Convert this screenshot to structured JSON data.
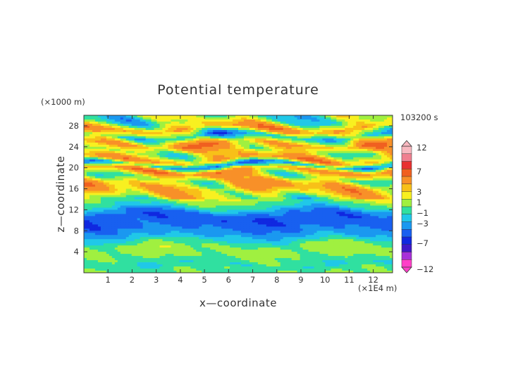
{
  "chart_data": {
    "type": "heatmap",
    "title": "Potential temperature",
    "xlabel": "x—coordinate",
    "ylabel": "z—coordinate",
    "x_unit": "(×1E4 m)",
    "y_unit": "(×1000 m)",
    "time_label": "103200 s",
    "xlim": [
      0,
      12.8
    ],
    "ylim": [
      0,
      30
    ],
    "x_ticks": [
      1,
      2,
      3,
      4,
      5,
      6,
      7,
      8,
      9,
      10,
      11,
      12
    ],
    "y_ticks": [
      4,
      8,
      12,
      16,
      20,
      24,
      28
    ],
    "z_by_height": [
      {
        "z": 0.5,
        "value": 0.0
      },
      {
        "z": 1.5,
        "value": -1.0
      },
      {
        "z": 3.0,
        "value": 0.0
      },
      {
        "z": 4.5,
        "value": 0.5
      },
      {
        "z": 5.5,
        "value": 0.0
      },
      {
        "z": 6.5,
        "value": -1.5
      },
      {
        "z": 7.5,
        "value": -2.5
      },
      {
        "z": 9.0,
        "value": -3.5
      },
      {
        "z": 10.5,
        "value": -3.8
      },
      {
        "z": 11.5,
        "value": -3.0
      },
      {
        "z": 12.5,
        "value": -1.0
      },
      {
        "z": 13.5,
        "value": 0.0
      },
      {
        "z": 15.0,
        "value": 1.5
      },
      {
        "z": 16.5,
        "value": 3.0
      },
      {
        "z": 18.0,
        "value": 1.0
      },
      {
        "z": 19.5,
        "value": 4.0
      },
      {
        "z": 20.5,
        "value": -3.0
      },
      {
        "z": 21.5,
        "value": 3.0
      },
      {
        "z": 23.0,
        "value": 1.0
      },
      {
        "z": 24.5,
        "value": 4.0
      },
      {
        "z": 26.0,
        "value": -2.0
      },
      {
        "z": 27.5,
        "value": 3.0
      },
      {
        "z": 29.0,
        "value": 0.0
      },
      {
        "z": 30.0,
        "value": 0.0
      }
    ],
    "colorbar": {
      "labels": [
        "12",
        "7",
        "3",
        "1",
        "−1",
        "−3",
        "−7",
        "−12"
      ],
      "levels": [
        -12,
        -9,
        -7,
        -5,
        -4,
        -3,
        -2,
        -1,
        0,
        1,
        2,
        3,
        5,
        7,
        9,
        12
      ],
      "colors": [
        "#ff3fc8",
        "#a830d8",
        "#4018c8",
        "#1028e0",
        "#1860f0",
        "#1a98f0",
        "#20c8e8",
        "#30e0a0",
        "#a0f040",
        "#f8f020",
        "#f8c018",
        "#f89028",
        "#f06020",
        "#e83030",
        "#f08090",
        "#f8b8c0"
      ]
    }
  }
}
